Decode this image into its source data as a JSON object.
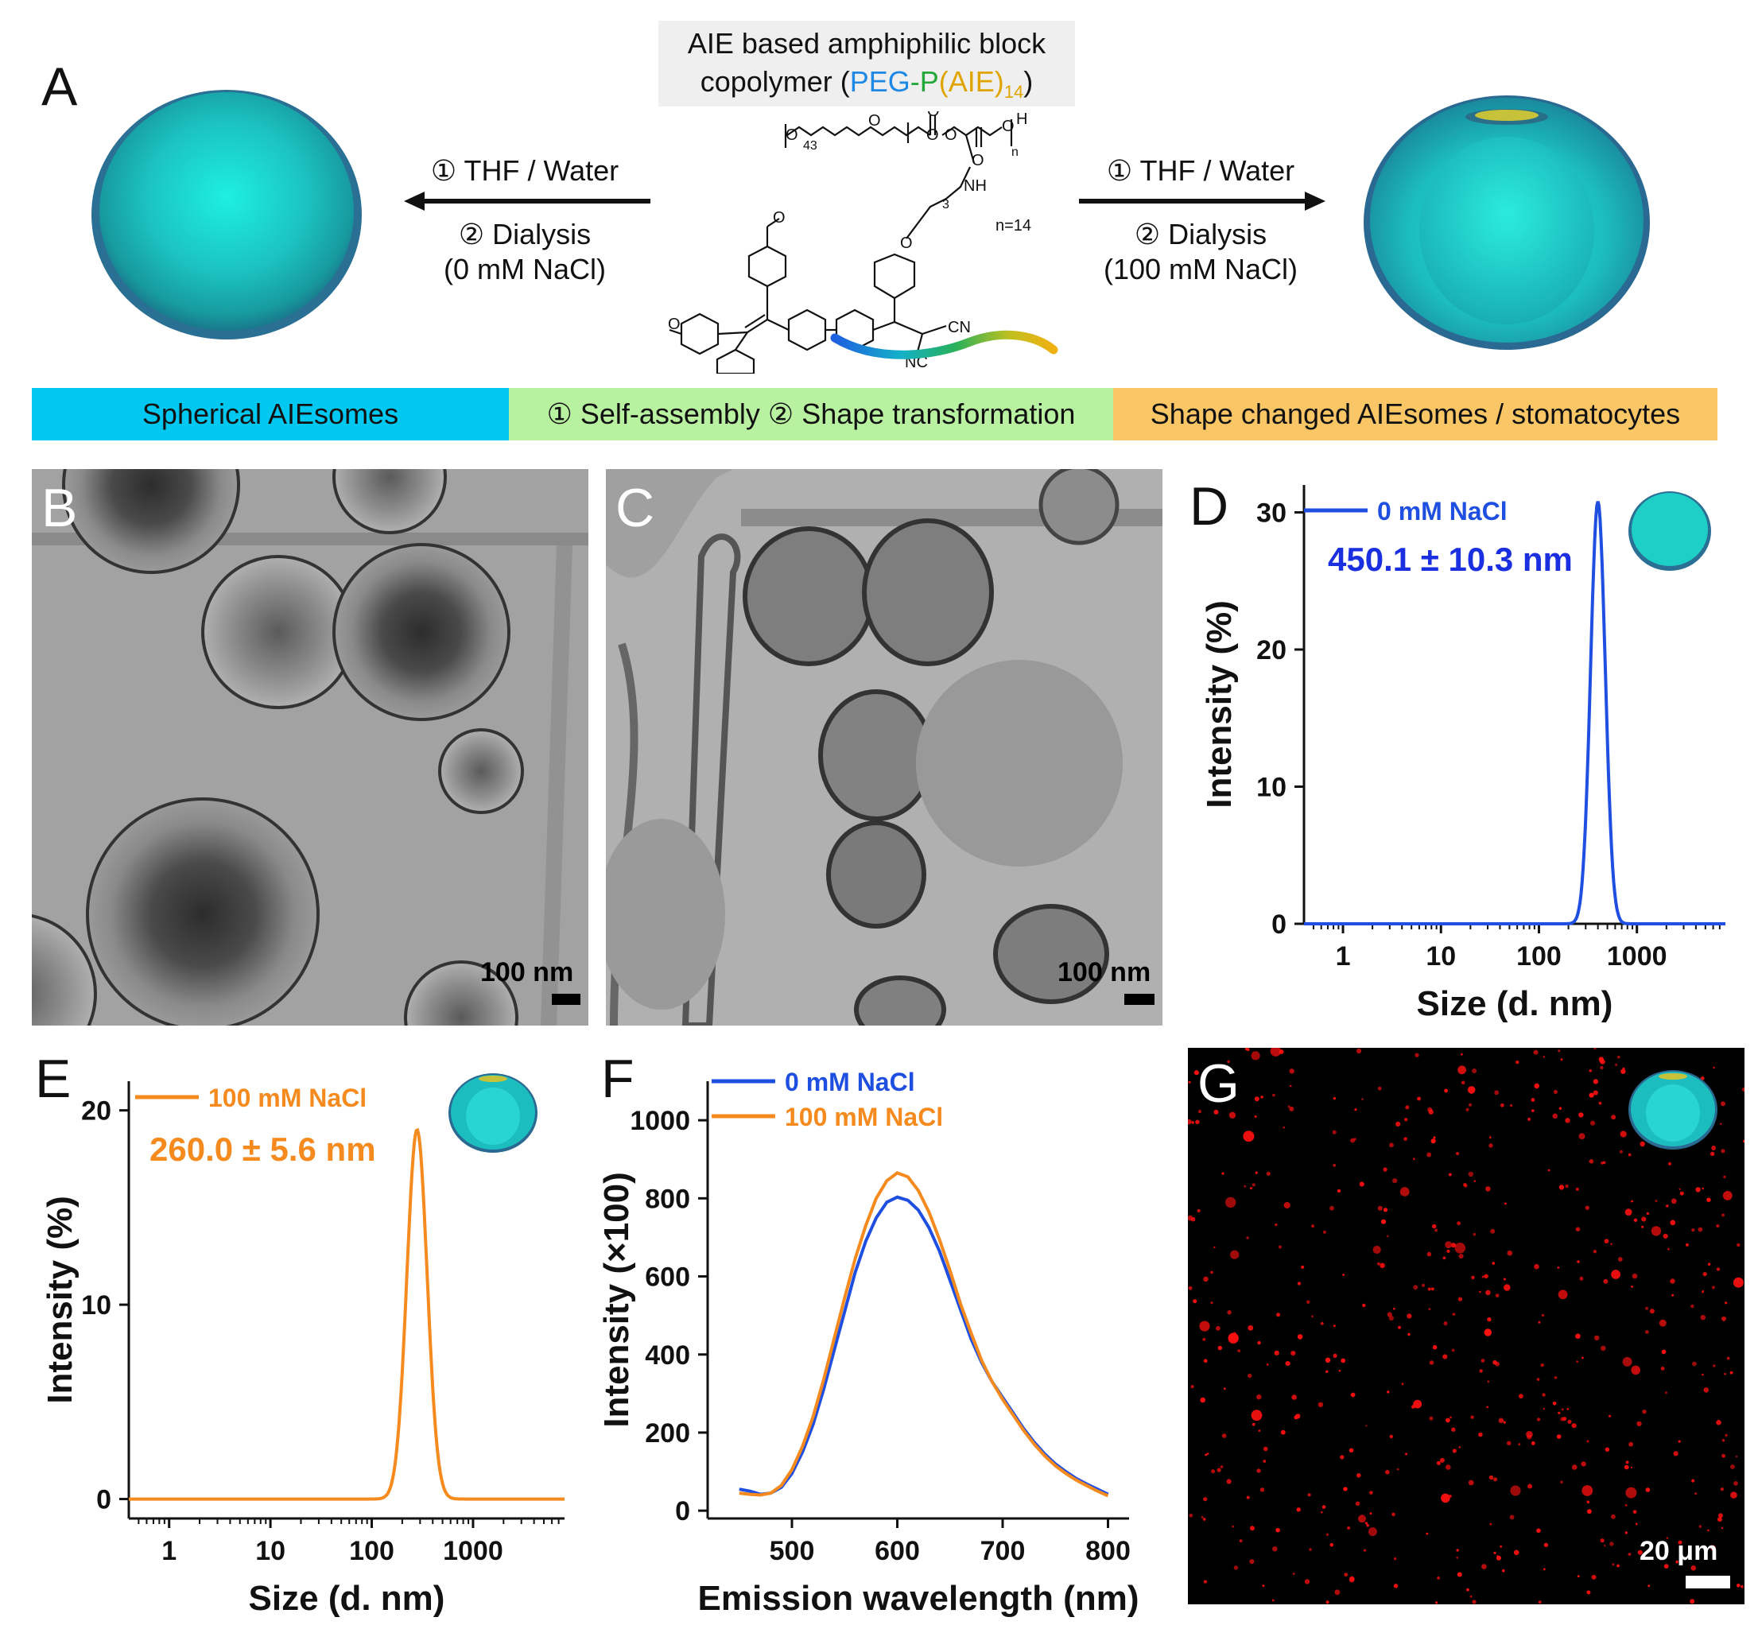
{
  "panel_labels": {
    "A": "A",
    "B": "B",
    "C": "C",
    "D": "D",
    "E": "E",
    "F": "F",
    "G": "G"
  },
  "polymer": {
    "line1": "AIE based amphiphilic block",
    "line2_prefix": "copolymer (",
    "line2_peg": "PEG",
    "line2_dash": "-",
    "line2_p": "P",
    "line2_aie": "(AIE)",
    "line2_sub": "14",
    "line2_suffix": ")",
    "n_label": "n=14",
    "sub_43": "43",
    "sub_n": "n",
    "sub_3": "3",
    "atom_h": "H",
    "atom_nh": "NH",
    "atom_cn": "CN",
    "atom_nc": "NC"
  },
  "left_arrow": {
    "step1": "① THF / Water",
    "step2": "② Dialysis",
    "step3": "(0 mM NaCl)"
  },
  "right_arrow": {
    "step1": "① THF / Water",
    "step2": "② Dialysis",
    "step3": "(100 mM NaCl)"
  },
  "banner": {
    "left": "Spherical AIEsomes",
    "middle": "① Self-assembly ② Shape transformation",
    "right": "Shape changed AIEsomes / stomatocytes",
    "colors": {
      "left": "#00c8f0",
      "middle": "#b8f2a0",
      "right": "#fbc766"
    }
  },
  "scale_bars": {
    "B": "100 nm",
    "C": "100 nm",
    "G": "20 μm"
  },
  "colors": {
    "blue": "#1f4fe0",
    "orange": "#f58a1f",
    "sphere": "#21b8b3",
    "peg": "#1e88e5",
    "p_green": "#21a838",
    "aie_gold": "#e0a400"
  },
  "chart_data": [
    {
      "panel": "D",
      "type": "line",
      "xlabel": "Size (d. nm)",
      "ylabel": "Intensity (%)",
      "x_scale": "log",
      "xlim": [
        0.4,
        8000
      ],
      "ylim": [
        0,
        32
      ],
      "x_ticks": [
        1,
        10,
        100,
        1000
      ],
      "x_tick_labels": [
        "1",
        "10",
        "100",
        "1000"
      ],
      "y_ticks": [
        0,
        10,
        20,
        30
      ],
      "y_tick_labels": [
        "0",
        "10",
        "20",
        "30"
      ],
      "series": [
        {
          "name": "0 mM NaCl",
          "color": "#1f4fe0",
          "peak_x": 400,
          "peak_y": 30.8,
          "width_log10": 0.075,
          "baseline": 0
        }
      ],
      "annotation": "450.1 ± 10.3 nm"
    },
    {
      "panel": "E",
      "type": "line",
      "xlabel": "Size (d. nm)",
      "ylabel": "Intensity (%)",
      "x_scale": "log",
      "xlim": [
        0.4,
        8000
      ],
      "ylim": [
        -1,
        21.5
      ],
      "x_ticks": [
        1,
        10,
        100,
        1000
      ],
      "x_tick_labels": [
        "1",
        "10",
        "100",
        "1000"
      ],
      "y_ticks": [
        0,
        10,
        20
      ],
      "y_tick_labels": [
        "0",
        "10",
        "20"
      ],
      "series": [
        {
          "name": "100 mM NaCl",
          "color": "#f58a1f",
          "peak_x": 280,
          "peak_y": 19.0,
          "width_log10": 0.1,
          "baseline": 0
        }
      ],
      "annotation": "260.0 ± 5.6 nm"
    },
    {
      "panel": "F",
      "type": "line",
      "xlabel": "Emission wavelength (nm)",
      "ylabel": "Intensity (×100)",
      "xlim": [
        420,
        820
      ],
      "ylim": [
        -20,
        1100
      ],
      "x_ticks": [
        500,
        600,
        700,
        800
      ],
      "x_tick_labels": [
        "500",
        "600",
        "700",
        "800"
      ],
      "y_ticks": [
        0,
        200,
        400,
        600,
        800,
        1000
      ],
      "y_tick_labels": [
        "0",
        "200",
        "400",
        "600",
        "800",
        "1000"
      ],
      "series": [
        {
          "name": "0 mM NaCl",
          "color": "#1f4fe0",
          "x": [
            450,
            460,
            470,
            480,
            490,
            500,
            510,
            520,
            530,
            540,
            550,
            560,
            570,
            580,
            590,
            600,
            610,
            620,
            630,
            640,
            650,
            660,
            670,
            680,
            690,
            700,
            710,
            720,
            730,
            740,
            750,
            760,
            770,
            780,
            790,
            800
          ],
          "y": [
            55,
            50,
            42,
            45,
            60,
            95,
            150,
            220,
            310,
            410,
            510,
            610,
            690,
            750,
            790,
            803,
            795,
            770,
            725,
            665,
            590,
            515,
            440,
            380,
            330,
            290,
            250,
            210,
            175,
            145,
            120,
            100,
            82,
            68,
            55,
            42
          ]
        },
        {
          "name": "100 mM NaCl",
          "color": "#f58a1f",
          "x": [
            450,
            460,
            470,
            480,
            490,
            500,
            510,
            520,
            530,
            540,
            550,
            560,
            570,
            580,
            590,
            600,
            610,
            620,
            630,
            640,
            650,
            660,
            670,
            680,
            690,
            700,
            710,
            720,
            730,
            740,
            750,
            760,
            770,
            780,
            790,
            800
          ],
          "y": [
            45,
            42,
            40,
            45,
            65,
            105,
            165,
            240,
            335,
            440,
            545,
            645,
            730,
            800,
            845,
            865,
            855,
            820,
            765,
            695,
            615,
            530,
            455,
            385,
            330,
            285,
            245,
            205,
            170,
            140,
            115,
            95,
            78,
            64,
            50,
            38
          ]
        }
      ]
    }
  ]
}
